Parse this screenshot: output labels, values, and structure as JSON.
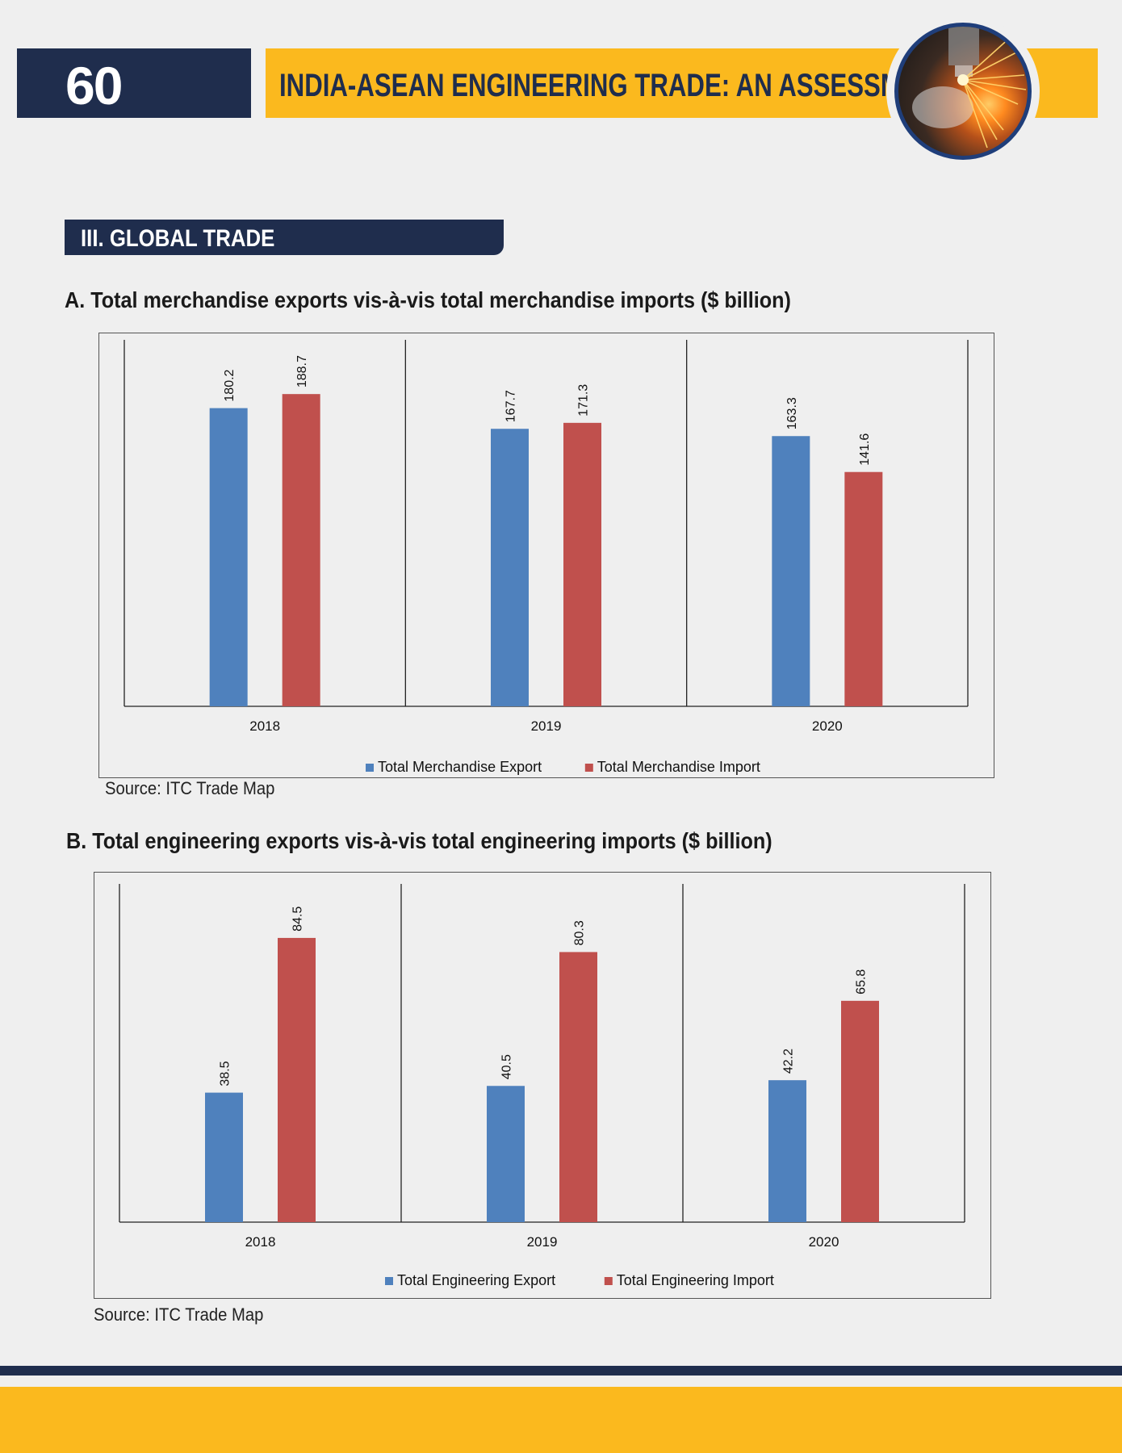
{
  "header": {
    "page_number": "60",
    "title": "INDIA-ASEAN ENGINEERING TRADE: AN ASSESSMENT"
  },
  "section": {
    "title": "III. GLOBAL TRADE"
  },
  "colors": {
    "navy": "#1f2d4d",
    "gold": "#fbb91e",
    "export_blue": "#4f81bd",
    "import_red": "#c0504d"
  },
  "chart_data": [
    {
      "type": "bar",
      "title": "A. Total merchandise exports vis-à-vis total merchandise imports ($ billion)",
      "categories": [
        "2018",
        "2019",
        "2020"
      ],
      "series": [
        {
          "name": "Total Merchandise Export",
          "color": "#4f81bd",
          "values": [
            180.2,
            167.7,
            163.3
          ]
        },
        {
          "name": "Total Merchandise Import",
          "color": "#c0504d",
          "values": [
            188.7,
            171.3,
            141.6
          ]
        }
      ],
      "ylim": [
        0,
        200
      ],
      "grid": false,
      "data_labels": "vertical, above bars",
      "legend_position": "bottom",
      "source": "Source: ITC Trade Map"
    },
    {
      "type": "bar",
      "title": "B.  Total engineering exports vis-à-vis total engineering imports ($ billion)",
      "categories": [
        "2018",
        "2019",
        "2020"
      ],
      "series": [
        {
          "name": "Total Engineering Export",
          "color": "#4f81bd",
          "values": [
            38.5,
            40.5,
            42.2
          ]
        },
        {
          "name": "Total Engineering Import",
          "color": "#c0504d",
          "values": [
            84.5,
            80.3,
            65.8
          ]
        }
      ],
      "ylim": [
        0,
        90
      ],
      "grid": false,
      "data_labels": "vertical, above bars",
      "legend_position": "bottom",
      "source": "Source: ITC Trade Map"
    }
  ]
}
